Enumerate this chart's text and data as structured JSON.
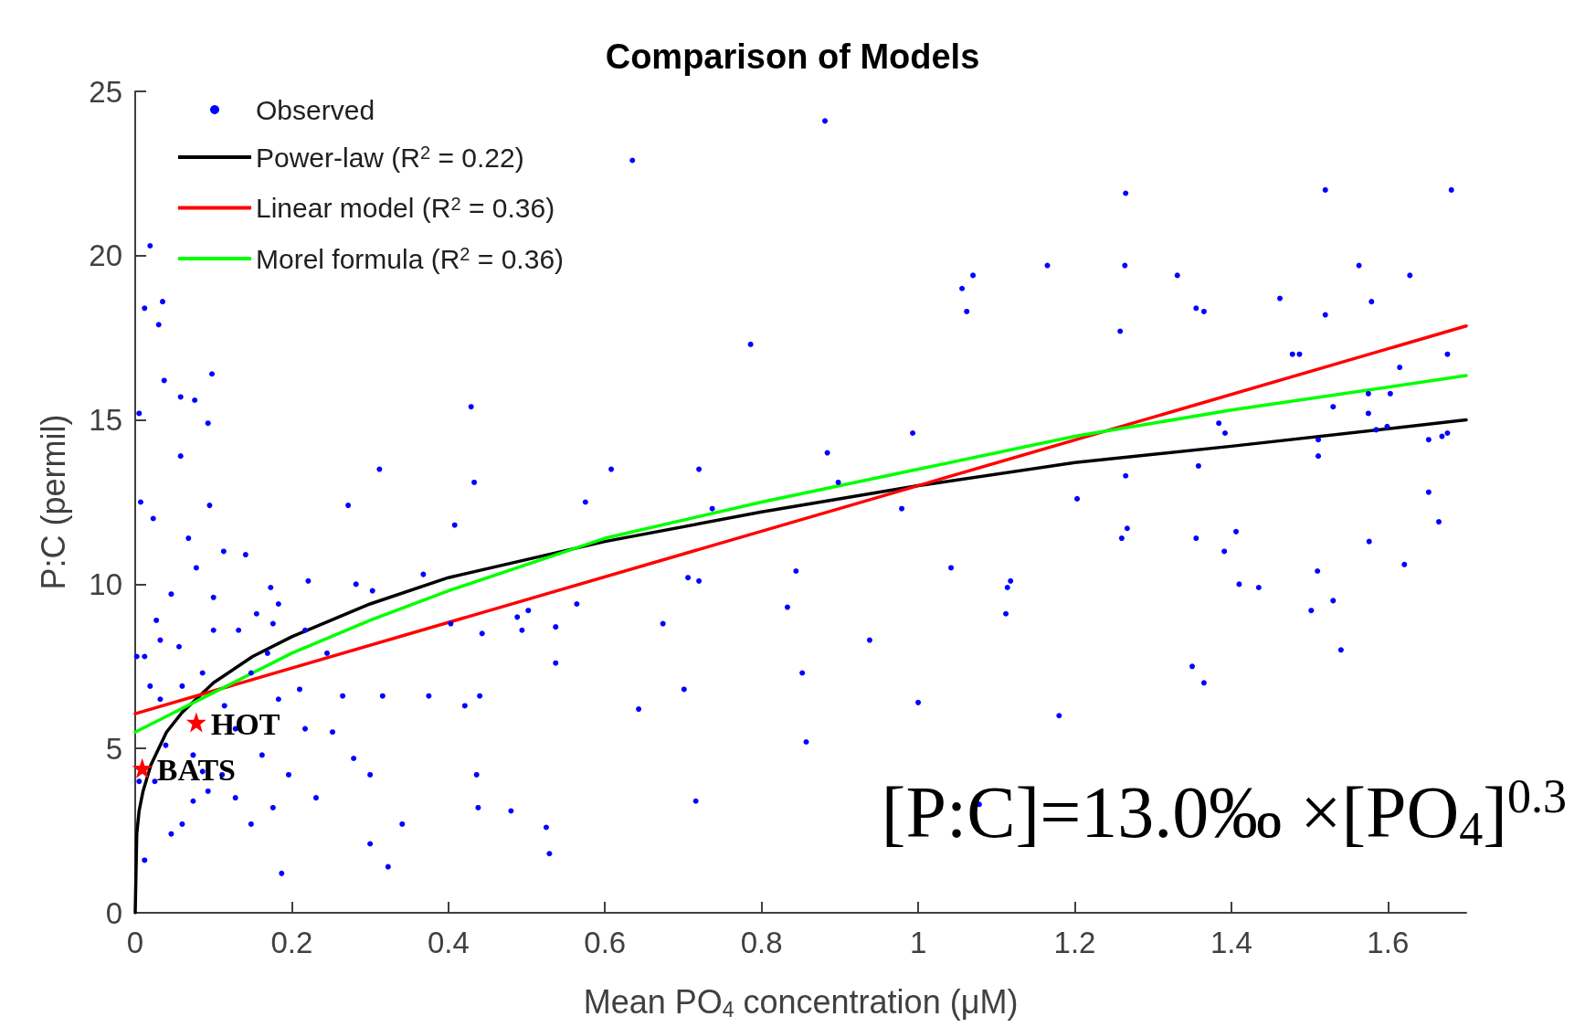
{
  "chart_data": {
    "type": "scatter",
    "title": "Comparison of Models",
    "xlabel": "Mean PO$_{4}$ concentration (μM)",
    "ylabel": "P:C (permil)",
    "xlim": [
      0,
      1.7
    ],
    "xticks": [
      0,
      0.2,
      0.4,
      0.6,
      0.8,
      1,
      1.2,
      1.4,
      1.6
    ],
    "ylim": [
      0,
      25
    ],
    "yticks": [
      0,
      5,
      10,
      15,
      20,
      25
    ],
    "grid": false,
    "legend": "top left",
    "annotations": [
      {
        "text": "HOT",
        "x": 0.078,
        "y": 5.8
      },
      {
        "text": "BATS",
        "x": 0.009,
        "y": 4.4
      },
      "[P:C]=13.0‰ ×[PO$_{4}$]$^{0.3}$"
    ],
    "series": [
      {
        "name": "Observed",
        "marker": "circle",
        "color": "#0000ff",
        "x": [
          0.881,
          0.635,
          1.07,
          1.056,
          1.062,
          0.786,
          0.429,
          0.993,
          0.608,
          0.72,
          0.433,
          0.575,
          0.737,
          0.898,
          0.979,
          0.844,
          1.042,
          0.706,
          0.72,
          0.833,
          0.564,
          0.502,
          0.488,
          0.494,
          0.443,
          0.537,
          0.674,
          0.938,
          0.537,
          0.44,
          0.421,
          0.852,
          0.701,
          0.643,
          1.0,
          0.436,
          0.438,
          0.48,
          0.525,
          0.529,
          0.857,
          0.716,
          1.078,
          0.884,
          1.265,
          1.52,
          1.681,
          1.165,
          1.264,
          1.331,
          1.563,
          1.628,
          1.462,
          1.579,
          1.355,
          1.365,
          1.258,
          1.52,
          1.478,
          1.487,
          1.676,
          1.615,
          1.575,
          1.603,
          1.53,
          1.575,
          1.384,
          1.392,
          1.599,
          1.585,
          1.511,
          1.652,
          1.676,
          1.669,
          1.511,
          1.358,
          1.265,
          1.203,
          1.652,
          1.665,
          1.267,
          1.26,
          1.355,
          1.406,
          1.391,
          1.576,
          1.621,
          1.118,
          1.114,
          1.112,
          1.41,
          1.435,
          1.51,
          1.502,
          1.53,
          1.54,
          1.35,
          1.365,
          1.18,
          0.019,
          0.012,
          0.035,
          0.03,
          0.037,
          0.098,
          0.058,
          0.076,
          0.005,
          0.093,
          0.058,
          0.312,
          0.095,
          0.007,
          0.272,
          0.408,
          0.023,
          0.068,
          0.078,
          0.113,
          0.141,
          0.173,
          0.221,
          0.282,
          0.303,
          0.368,
          0.1,
          0.046,
          0.027,
          0.183,
          0.132,
          0.056,
          0.012,
          0.086,
          0.169,
          0.21,
          0.265,
          0.316,
          0.252,
          0.032,
          0.128,
          0.162,
          0.074,
          0.039,
          0.196,
          0.093,
          0.06,
          0.148,
          0.176,
          0.046,
          0.231,
          0.012,
          0.187,
          0.323,
          0.3,
          0.341,
          0.005,
          0.111,
          0.002,
          0.155,
          0.114,
          0.06,
          0.019,
          0.025,
          0.074,
          0.128,
          0.086,
          0.217,
          0.245,
          0.176,
          0.1,
          0.032,
          0.148,
          0.183,
          0.217,
          0.279,
          0.375,
          0.403,
          0.3
        ],
        "values": [
          24.1,
          22.9,
          19.4,
          19.0,
          18.3,
          17.3,
          15.4,
          14.6,
          13.5,
          13.5,
          13.1,
          12.5,
          12.3,
          13.1,
          12.3,
          10.4,
          10.5,
          10.2,
          10.1,
          9.3,
          9.4,
          9.2,
          9.0,
          8.6,
          8.5,
          8.7,
          8.8,
          8.3,
          7.6,
          6.6,
          6.3,
          7.3,
          6.8,
          6.2,
          6.4,
          4.2,
          3.2,
          3.1,
          2.6,
          1.8,
          5.2,
          3.4,
          3.3,
          14.0,
          21.9,
          22.0,
          22.0,
          19.7,
          19.7,
          19.4,
          19.7,
          19.4,
          18.7,
          18.6,
          18.4,
          18.3,
          17.7,
          18.2,
          17.0,
          17.0,
          17.0,
          16.6,
          15.8,
          15.8,
          15.4,
          15.2,
          14.9,
          14.6,
          14.8,
          14.7,
          14.4,
          14.4,
          14.6,
          14.5,
          13.9,
          13.6,
          13.3,
          12.6,
          12.8,
          11.9,
          11.7,
          11.4,
          11.4,
          11.6,
          11.0,
          11.3,
          10.6,
          10.1,
          9.9,
          9.1,
          10.0,
          9.9,
          10.4,
          9.2,
          9.5,
          8.0,
          7.5,
          7.0,
          6.0,
          20.3,
          18.4,
          18.6,
          17.9,
          16.2,
          16.4,
          15.7,
          15.6,
          15.2,
          14.9,
          13.9,
          13.5,
          12.4,
          12.5,
          12.4,
          11.8,
          12.0,
          11.4,
          10.5,
          11.0,
          10.9,
          9.9,
          10.1,
          10.0,
          9.8,
          10.3,
          9.6,
          9.7,
          8.9,
          9.4,
          8.6,
          8.1,
          7.8,
          7.3,
          7.9,
          6.8,
          6.6,
          6.6,
          5.5,
          6.5,
          5.6,
          4.8,
          4.8,
          5.1,
          4.2,
          3.7,
          2.7,
          2.7,
          3.2,
          2.4,
          3.5,
          1.6,
          1.2,
          1.4,
          2.1,
          2.7,
          4.0,
          4.2,
          7.8,
          9.1,
          6.3,
          6.9,
          6.9,
          4.0,
          3.4,
          3.5,
          4.3,
          8.6,
          7.9,
          8.8,
          8.6,
          8.3,
          7.3,
          6.5,
          5.6,
          4.7,
          6.6,
          8.8,
          4.2
        ]
      },
      {
        "name": "Power-law (R$^{2}$ = 0.22)",
        "type": "line",
        "marker": "none",
        "color": "#000000",
        "x": [
          0,
          0.002,
          0.005,
          0.01,
          0.02,
          0.04,
          0.06,
          0.1,
          0.15,
          0.2,
          0.3,
          0.4,
          0.6,
          0.8,
          1,
          1.2,
          1.4,
          1.7
        ],
        "values": [
          0,
          2.4,
          3.1,
          3.7,
          4.5,
          5.5,
          6.1,
          7.0,
          7.8,
          8.4,
          9.4,
          10.2,
          11.3,
          12.2,
          13.0,
          13.7,
          14.2,
          15.0
        ]
      },
      {
        "name": "Linear model (R$^{2}$ = 0.36)",
        "type": "line",
        "marker": "none",
        "color": "#ff0000",
        "x": [
          0,
          1.7
        ],
        "values": [
          6.06,
          17.86
        ]
      },
      {
        "name": "Morel formula (R$^{2}$ = 0.36)",
        "type": "line",
        "marker": "none",
        "color": "#00ff00",
        "x": [
          0,
          0.1,
          0.2,
          0.3,
          0.4,
          0.6,
          0.8,
          1.0,
          1.2,
          1.4,
          1.7
        ],
        "values": [
          5.5,
          6.7,
          7.9,
          8.9,
          9.8,
          11.4,
          12.5,
          13.5,
          14.5,
          15.3,
          16.35
        ]
      },
      {
        "marker": "star",
        "color": "#ff0000",
        "x": [
          0.078,
          0.009
        ],
        "values": [
          5.8,
          4.4
        ]
      }
    ]
  }
}
